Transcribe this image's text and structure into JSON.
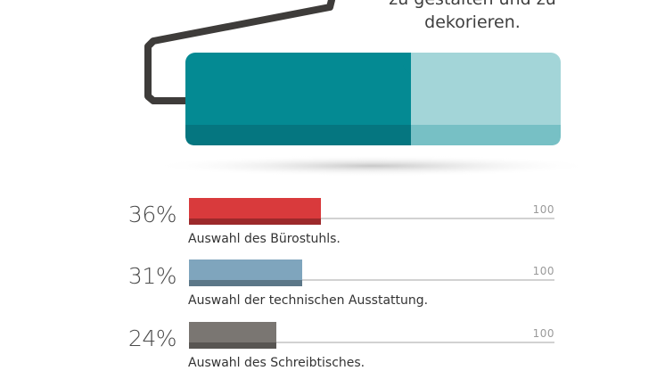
{
  "intro": {
    "line1": "zu gestalten und zu",
    "line2": "dekorieren."
  },
  "colors": {
    "roller_dark": "#048a93",
    "roller_light": "#a3d5d8",
    "handle": "#3e3c3a"
  },
  "chart_data": {
    "type": "bar",
    "orientation": "horizontal",
    "max_value": 100,
    "max_label": "100",
    "series": [
      {
        "label": "Auswahl des Bürostuhls.",
        "value": 36,
        "value_label": "36%",
        "color": "#d93a3c"
      },
      {
        "label": "Auswahl der technischen Ausstattung.",
        "value": 31,
        "value_label": "31%",
        "color": "#7fa5bd"
      },
      {
        "label": "Auswahl des Schreibtisches.",
        "value": 24,
        "value_label": "24%",
        "color": "#7a7672"
      }
    ]
  }
}
